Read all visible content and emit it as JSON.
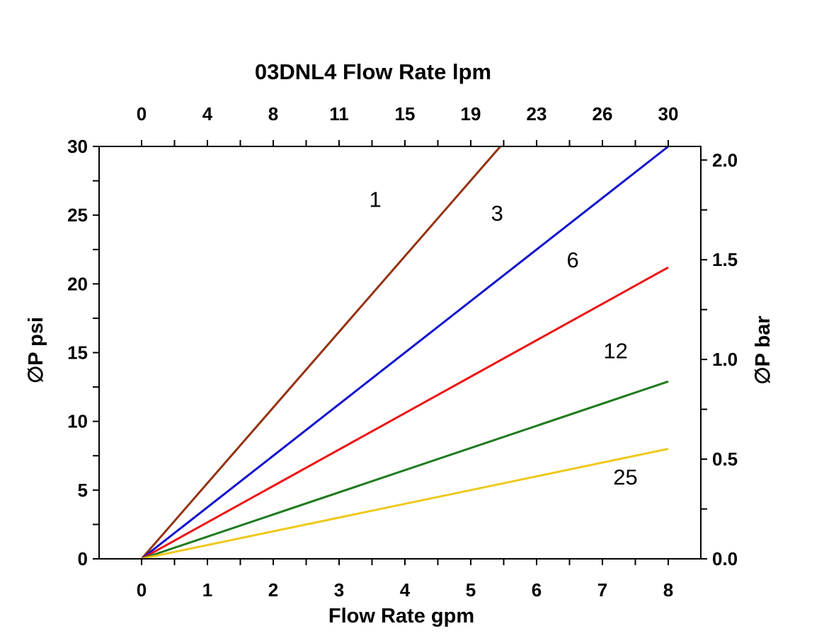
{
  "chart_data": {
    "type": "line",
    "title": "03DNL4  Flow Rate lpm",
    "xlabel_bottom": "Flow Rate gpm",
    "ylabel_left": "∅P psi",
    "ylabel_right": "∅P bar",
    "x_bottom": {
      "ticks": [
        0,
        1,
        2,
        3,
        4,
        5,
        6,
        7,
        8
      ],
      "range": [
        0,
        8
      ]
    },
    "x_top": {
      "tick_labels": [
        "0",
        "4",
        "8",
        "11",
        "15",
        "19",
        "23",
        "26",
        "30"
      ],
      "positions_gpm": [
        0,
        1,
        2,
        3,
        4,
        5,
        6,
        7,
        8
      ],
      "unit": "lpm"
    },
    "y_left": {
      "ticks": [
        0,
        5,
        10,
        15,
        20,
        25,
        30
      ],
      "range": [
        0,
        30
      ],
      "unit": "psi"
    },
    "y_right": {
      "ticks": [
        0.0,
        0.5,
        1.0,
        1.5,
        2.0
      ],
      "tick_labels": [
        "0.0",
        "0.5",
        "1.0",
        "1.5",
        "2.0"
      ],
      "range": [
        0,
        2.0684
      ],
      "unit": "bar"
    },
    "grid": false,
    "legend_position": "inline-labels",
    "series": [
      {
        "name": "1",
        "color": "#943310",
        "points": [
          [
            0,
            0
          ],
          [
            5.45,
            30
          ]
        ],
        "label_pos": [
          3.55,
          25.6
        ]
      },
      {
        "name": "3",
        "color": "#1111cc",
        "points": [
          [
            0,
            0
          ],
          [
            8,
            30
          ]
        ],
        "label_pos": [
          5.4,
          24.6
        ]
      },
      {
        "name": "6",
        "color": "#ee1111",
        "points": [
          [
            0,
            0
          ],
          [
            8,
            21.2
          ]
        ],
        "label_pos": [
          6.55,
          21.2
        ]
      },
      {
        "name": "12",
        "color": "#1e7b1e",
        "points": [
          [
            0,
            0
          ],
          [
            8,
            12.9
          ]
        ],
        "label_pos": [
          7.2,
          14.6
        ]
      },
      {
        "name": "25",
        "color": "#eec91c",
        "points": [
          [
            0,
            0
          ],
          [
            8,
            8.0
          ]
        ],
        "label_pos": [
          7.35,
          5.4
        ]
      }
    ]
  }
}
